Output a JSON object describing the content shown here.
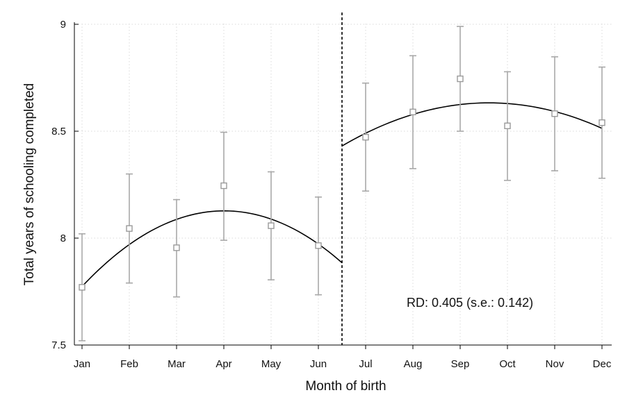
{
  "chart_data": {
    "type": "scatter",
    "xlabel": "Month of birth",
    "ylabel": "Total years of schooling completed",
    "categories": [
      "Jan",
      "Feb",
      "Mar",
      "Apr",
      "May",
      "Jun",
      "Jul",
      "Aug",
      "Sep",
      "Oct",
      "Nov",
      "Dec"
    ],
    "ylim": [
      7.5,
      9.0
    ],
    "yticks": [
      "7.5",
      "8",
      "8.5",
      "9"
    ],
    "grid": true,
    "cutoff_after": "Jun",
    "series": [
      {
        "means": [
          7.77,
          8.045,
          7.955,
          8.245,
          8.058,
          7.965,
          8.472,
          8.59,
          8.745,
          8.525,
          8.582,
          8.54
        ],
        "ci_low": [
          7.52,
          7.79,
          7.725,
          7.99,
          7.805,
          7.735,
          8.22,
          8.325,
          8.5,
          8.27,
          8.315,
          8.28
        ],
        "ci_high": [
          8.02,
          8.3,
          8.18,
          8.495,
          8.31,
          8.192,
          8.725,
          8.853,
          8.99,
          8.778,
          8.848,
          8.8
        ]
      }
    ],
    "fit_before": [
      {
        "x": "Jan",
        "y": 7.775
      },
      {
        "x": "Feb",
        "y": 7.97
      },
      {
        "x": "Mar",
        "y": 8.085
      },
      {
        "x": "Apr",
        "y": 8.125
      },
      {
        "x": "May",
        "y": 8.09
      },
      {
        "x": "Jun",
        "y": 7.985
      },
      {
        "x": "Jun/Jul",
        "y": 7.875
      }
    ],
    "fit_after": [
      {
        "x": "Jun/Jul",
        "y": 8.435
      },
      {
        "x": "Jul",
        "y": 8.49
      },
      {
        "x": "Aug",
        "y": 8.57
      },
      {
        "x": "Sep",
        "y": 8.625
      },
      {
        "x": "Oct",
        "y": 8.635
      },
      {
        "x": "Nov",
        "y": 8.595
      },
      {
        "x": "Dec",
        "y": 8.51
      }
    ],
    "annotation": "RD: 0.405 (s.e.: 0.142)"
  },
  "colors": {
    "points": "#9a9a9a",
    "error_bars": "#a8a8a8",
    "fit_line": "#000000",
    "grid": "#d9d9d9"
  }
}
